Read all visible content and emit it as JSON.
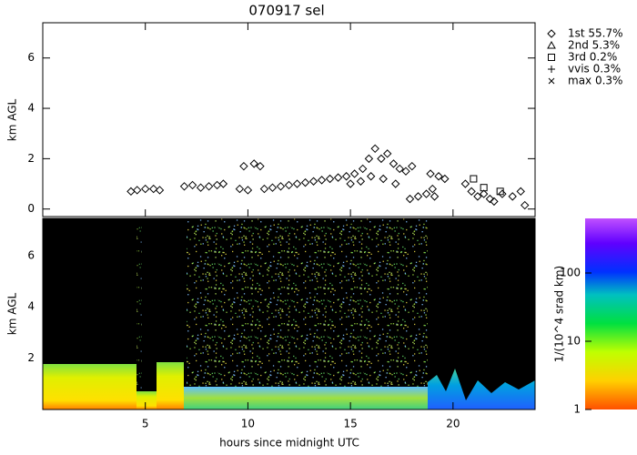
{
  "chart_data": [
    {
      "type": "scatter",
      "title": "070917 sel",
      "ylabel": "km AGL",
      "xlim": [
        0,
        24
      ],
      "xticks": [
        5,
        10,
        15,
        20
      ],
      "ylim": [
        -0.3,
        7.4
      ],
      "yticks": [
        0,
        2,
        4,
        6
      ],
      "series": [
        {
          "name": "1st 55.7%",
          "marker": "diamond",
          "color": "#000000",
          "x": [
            4.3,
            4.6,
            5.0,
            5.4,
            5.7,
            6.9,
            7.3,
            7.7,
            8.1,
            8.5,
            8.8,
            9.6,
            9.8,
            10.0,
            10.3,
            10.6,
            10.8,
            11.2,
            11.6,
            12.0,
            12.4,
            12.8,
            13.2,
            13.6,
            14.0,
            14.4,
            14.8,
            15.0,
            15.2,
            15.5,
            15.6,
            15.9,
            16.0,
            16.2,
            16.5,
            16.6,
            16.8,
            17.1,
            17.2,
            17.4,
            17.7,
            17.9,
            18.0,
            18.3,
            18.7,
            18.9,
            19.0,
            19.1,
            19.3,
            19.6,
            20.6,
            20.9,
            21.2,
            21.5,
            21.8,
            22.0,
            22.4,
            22.9,
            23.3,
            23.5
          ],
          "values": [
            0.7,
            0.75,
            0.8,
            0.8,
            0.75,
            0.9,
            0.95,
            0.85,
            0.9,
            0.95,
            1.0,
            0.8,
            1.7,
            0.75,
            1.8,
            1.7,
            0.8,
            0.85,
            0.9,
            0.95,
            1.0,
            1.05,
            1.1,
            1.15,
            1.2,
            1.25,
            1.3,
            1.0,
            1.4,
            1.1,
            1.6,
            2.0,
            1.3,
            2.4,
            2.0,
            1.2,
            2.2,
            1.8,
            1.0,
            1.6,
            1.5,
            0.4,
            1.7,
            0.5,
            0.6,
            1.4,
            0.8,
            0.5,
            1.3,
            1.2,
            1.0,
            0.7,
            0.5,
            0.6,
            0.4,
            0.3,
            0.6,
            0.5,
            0.7,
            0.15
          ]
        },
        {
          "name": "2nd 5.3%",
          "marker": "triangle",
          "color": "#000000",
          "x": [],
          "values": []
        },
        {
          "name": "3rd 0.2%",
          "marker": "square",
          "color": "#000000",
          "x": [
            21.0,
            21.5,
            22.3
          ],
          "values": [
            1.2,
            0.85,
            0.7
          ]
        },
        {
          "name": "vvis 0.3%",
          "marker": "plus",
          "color": "#000000",
          "x": [],
          "values": []
        },
        {
          "name": "max 0.3%",
          "marker": "cross",
          "color": "#000000",
          "x": [],
          "values": []
        }
      ]
    },
    {
      "type": "image",
      "xlabel": "hours since midnight UTC",
      "ylabel": "km AGL",
      "xlim": [
        0,
        24
      ],
      "xticks": [
        5,
        10,
        15,
        20
      ],
      "ylim": [
        0,
        7.45
      ],
      "yticks": [
        2,
        4,
        6
      ],
      "colorbar": {
        "label": "1/(10^4 srad km)",
        "scale": "log",
        "lim": [
          1,
          631
        ],
        "ticks": [
          1,
          10,
          100
        ]
      }
    }
  ]
}
